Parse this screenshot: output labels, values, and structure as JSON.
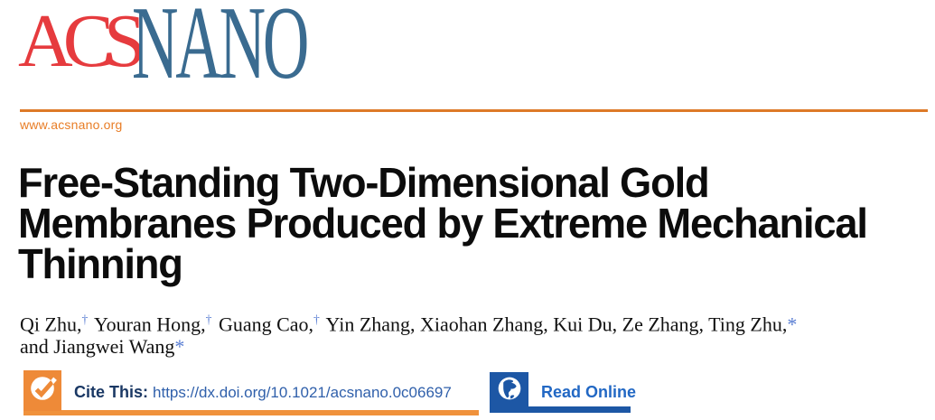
{
  "masthead": {
    "logo": {
      "acs": "ACS",
      "nano": "NANO",
      "acs_color": "#e63b3e",
      "nano_color": "#3a6b90"
    },
    "website": "www.acsnano.org",
    "rule_color": "#dd7a28"
  },
  "article": {
    "title": {
      "line1": "Free-Standing Two-Dimensional Gold",
      "line2": "Membranes Produced by Extreme Mechanical",
      "line3": "Thinning"
    },
    "authors": [
      {
        "text": "Qi Zhu,",
        "marker": "†"
      },
      {
        "text": " Youran Hong,",
        "marker": "†"
      },
      {
        "text": " Guang Cao,",
        "marker": "†"
      },
      {
        "text": " Yin Zhang, Xiaohan Zhang, Kui Du, Ze Zhang, Ting Zhu,",
        "marker": "*"
      },
      {
        "text": "and Jiangwei Wang",
        "marker": "*",
        "break_before": true
      }
    ],
    "marker_color": "#5b7fd3"
  },
  "access_bar": {
    "cite_label": "Cite This:",
    "doi_url": "https://dx.doi.org/10.1021/acsnano.0c06697",
    "read_online_label": "Read Online",
    "icons": {
      "cite": "checkmark-circle-icon",
      "read": "globe-icon"
    },
    "colors": {
      "cite_accent": "#ee8a38",
      "cite_label_color": "#1a3864",
      "doi_link_color": "#3060ab",
      "read_accent": "#1d57a5",
      "read_label_color": "#2268c4"
    }
  }
}
